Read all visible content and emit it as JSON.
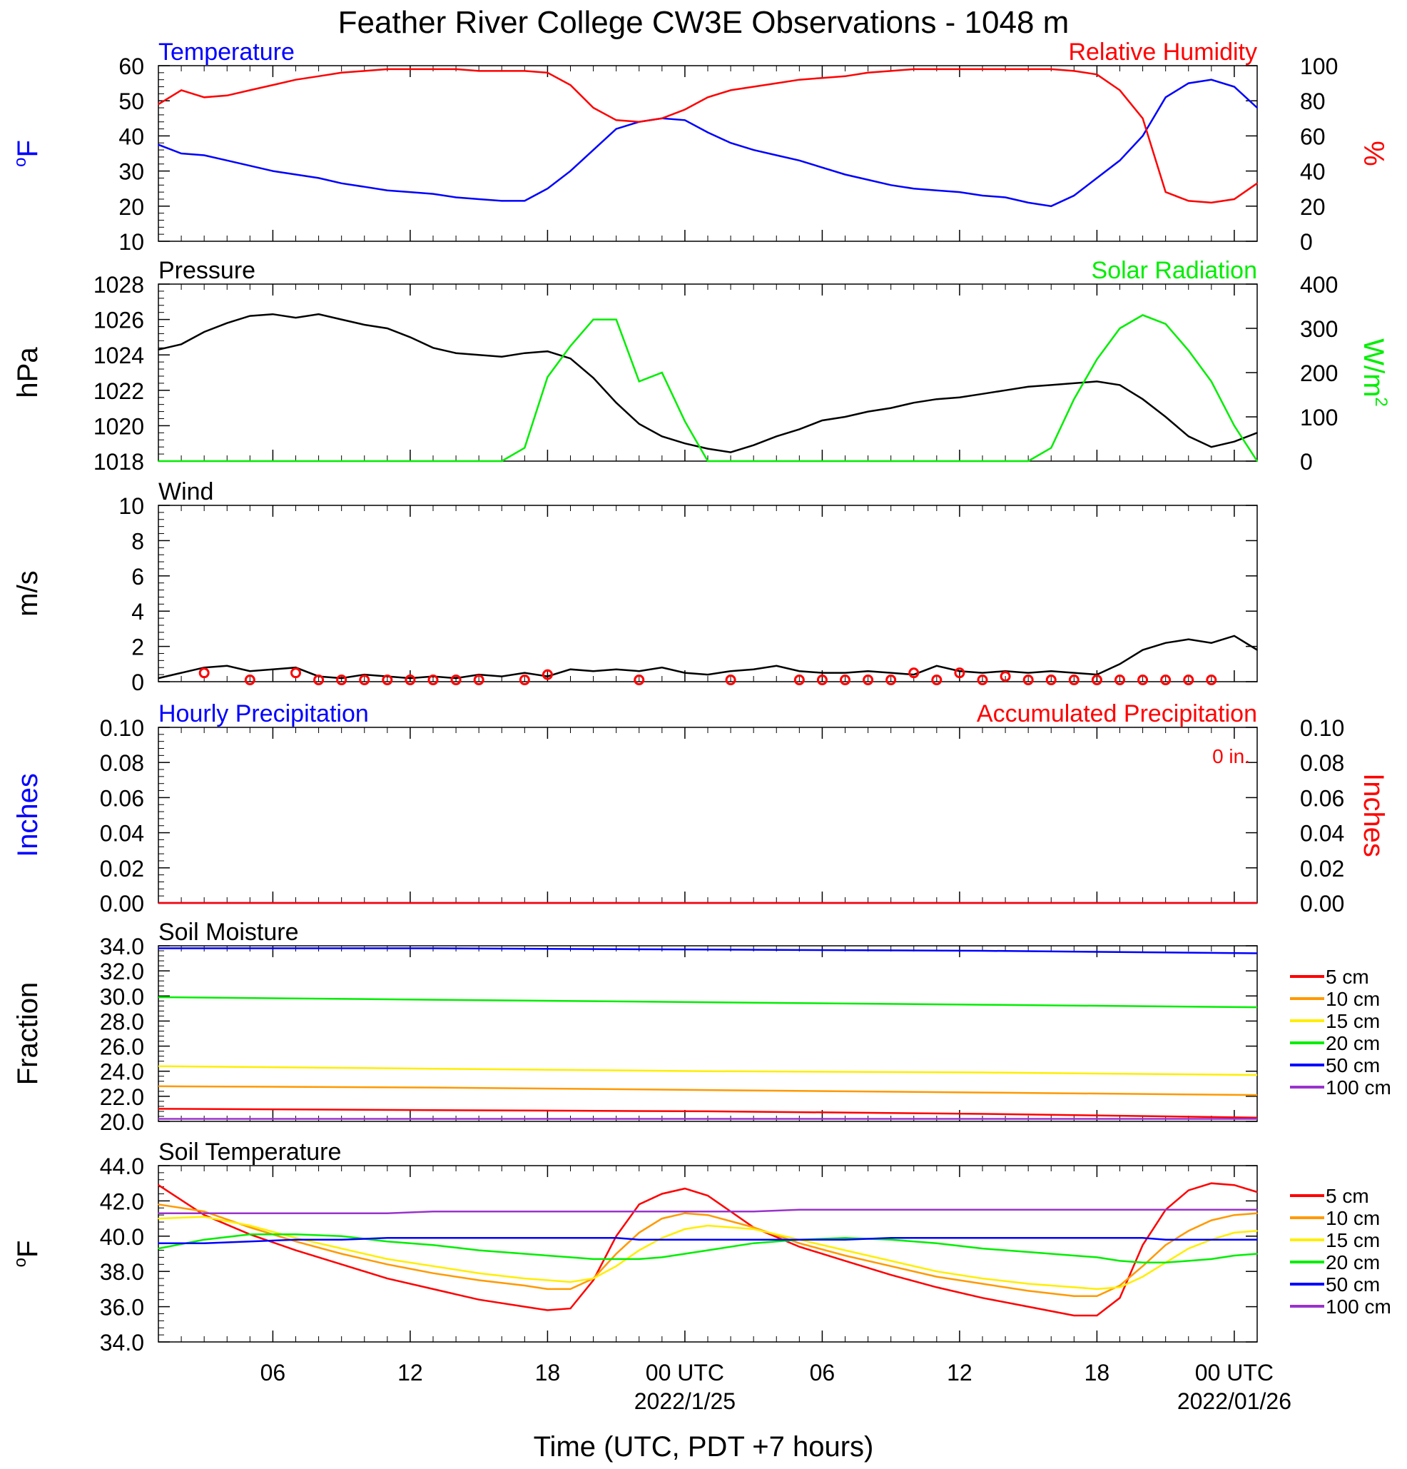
{
  "title": "Feather River College CW3E Observations - 1048 m",
  "colors": {
    "blue": "#0000ff",
    "red": "#ff0000",
    "green": "#00ee00",
    "black": "#000000",
    "orange": "#ff9900",
    "yellow": "#ffee00",
    "purple": "#9933cc"
  },
  "x_axis": {
    "title": "Time (UTC, PDT +7 hours)",
    "hours_range": [
      0,
      48
    ],
    "ticks": [
      {
        "hour": 5,
        "label": "06"
      },
      {
        "hour": 11,
        "label": "12"
      },
      {
        "hour": 17,
        "label": "18"
      },
      {
        "hour": 23,
        "label": "00 UTC",
        "sublabel": "2022/1/25"
      },
      {
        "hour": 29,
        "label": "06"
      },
      {
        "hour": 35,
        "label": "12"
      },
      {
        "hour": 41,
        "label": "18"
      },
      {
        "hour": 47,
        "label": "00 UTC",
        "sublabel": "2022/01/26"
      }
    ]
  },
  "chart_data": [
    {
      "type": "line",
      "panel": "temperature-rh",
      "title_left": "Temperature",
      "title_right": "Relative Humidity",
      "ylabel_left": "oF",
      "ylabel_right": "%",
      "ylim_left": [
        10,
        60
      ],
      "ylim_right": [
        0,
        100
      ],
      "yticks_left": [
        "10",
        "20",
        "30",
        "40",
        "50",
        "60"
      ],
      "yticks_right": [
        "0",
        "20",
        "40",
        "60",
        "80",
        "100"
      ],
      "x_hours": [
        0,
        1,
        2,
        3,
        4,
        5,
        6,
        7,
        8,
        9,
        10,
        11,
        12,
        13,
        14,
        15,
        16,
        17,
        18,
        19,
        20,
        21,
        22,
        23,
        24,
        25,
        26,
        27,
        28,
        29,
        30,
        31,
        32,
        33,
        34,
        35,
        36,
        37,
        38,
        39,
        40,
        41,
        42,
        43,
        44,
        45,
        46,
        47,
        48
      ],
      "series": [
        {
          "name": "Temperature",
          "axis": "left",
          "color": "blue",
          "values": [
            37.5,
            35,
            34.5,
            33,
            31.5,
            30,
            29,
            28,
            26.5,
            25.5,
            24.5,
            24,
            23.5,
            22.5,
            22,
            21.5,
            21.5,
            25,
            30,
            36,
            42,
            44,
            45,
            44.5,
            41,
            38,
            36,
            34.5,
            33,
            31,
            29,
            27.5,
            26,
            25,
            24.5,
            24,
            23,
            22.5,
            21,
            20,
            23,
            28,
            33,
            40,
            51,
            55,
            56,
            54,
            48
          ]
        },
        {
          "name": "Relative Humidity",
          "axis": "right",
          "color": "red",
          "values": [
            78,
            86,
            82,
            83,
            86,
            89,
            92,
            94,
            96,
            97,
            98,
            98,
            98,
            98,
            97,
            97,
            97,
            96,
            89,
            76,
            69,
            68,
            70,
            75,
            82,
            86,
            88,
            90,
            92,
            93,
            94,
            96,
            97,
            98,
            98,
            98,
            98,
            98,
            98,
            98,
            97,
            95,
            86,
            70,
            28,
            23,
            22,
            24,
            33
          ]
        }
      ]
    },
    {
      "type": "line",
      "panel": "pressure-solar",
      "title_left": "Pressure",
      "title_right": "Solar Radiation",
      "ylabel_left": "hPa",
      "ylabel_right": "W/m2",
      "ylim_left": [
        1018,
        1028
      ],
      "ylim_right": [
        0,
        400
      ],
      "yticks_left": [
        "1018",
        "1020",
        "1022",
        "1024",
        "1026",
        "1028"
      ],
      "yticks_right": [
        "0",
        "100",
        "200",
        "300",
        "400"
      ],
      "x_hours": [
        0,
        1,
        2,
        3,
        4,
        5,
        6,
        7,
        8,
        9,
        10,
        11,
        12,
        13,
        14,
        15,
        16,
        17,
        18,
        19,
        20,
        21,
        22,
        23,
        24,
        25,
        26,
        27,
        28,
        29,
        30,
        31,
        32,
        33,
        34,
        35,
        36,
        37,
        38,
        39,
        40,
        41,
        42,
        43,
        44,
        45,
        46,
        47,
        48
      ],
      "series": [
        {
          "name": "Pressure",
          "axis": "left",
          "color": "black",
          "values": [
            1024.3,
            1024.6,
            1025.3,
            1025.8,
            1026.2,
            1026.3,
            1026.1,
            1026.3,
            1026,
            1025.7,
            1025.5,
            1025,
            1024.4,
            1024.1,
            1024,
            1023.9,
            1024.1,
            1024.2,
            1023.8,
            1022.7,
            1021.3,
            1020.1,
            1019.4,
            1019,
            1018.7,
            1018.5,
            1018.9,
            1019.4,
            1019.8,
            1020.3,
            1020.5,
            1020.8,
            1021,
            1021.3,
            1021.5,
            1021.6,
            1021.8,
            1022,
            1022.2,
            1022.3,
            1022.4,
            1022.5,
            1022.3,
            1021.5,
            1020.5,
            1019.4,
            1018.8,
            1019.1,
            1019.6
          ]
        },
        {
          "name": "Solar Radiation",
          "axis": "right",
          "color": "green",
          "values": [
            0,
            0,
            0,
            0,
            0,
            0,
            0,
            0,
            0,
            0,
            0,
            0,
            0,
            0,
            0,
            0,
            30,
            190,
            260,
            320,
            320,
            180,
            200,
            90,
            0,
            0,
            0,
            0,
            0,
            0,
            0,
            0,
            0,
            0,
            0,
            0,
            0,
            0,
            0,
            30,
            140,
            230,
            300,
            330,
            310,
            250,
            180,
            80,
            0
          ]
        }
      ]
    },
    {
      "type": "line",
      "panel": "wind",
      "title_left": "Wind",
      "ylabel_left": "m/s",
      "ylim_left": [
        0,
        10
      ],
      "yticks_left": [
        "0",
        "2",
        "4",
        "6",
        "8",
        "10"
      ],
      "x_hours": [
        0,
        1,
        2,
        3,
        4,
        5,
        6,
        7,
        8,
        9,
        10,
        11,
        12,
        13,
        14,
        15,
        16,
        17,
        18,
        19,
        20,
        21,
        22,
        23,
        24,
        25,
        26,
        27,
        28,
        29,
        30,
        31,
        32,
        33,
        34,
        35,
        36,
        37,
        38,
        39,
        40,
        41,
        42,
        43,
        44,
        45,
        46,
        47,
        48
      ],
      "series": [
        {
          "name": "Wind Speed",
          "axis": "left",
          "color": "black",
          "values": [
            0.2,
            0.5,
            0.8,
            0.9,
            0.6,
            0.7,
            0.8,
            0.3,
            0.2,
            0.4,
            0.3,
            0.2,
            0.3,
            0.2,
            0.4,
            0.3,
            0.5,
            0.3,
            0.7,
            0.6,
            0.7,
            0.6,
            0.8,
            0.5,
            0.4,
            0.6,
            0.7,
            0.9,
            0.6,
            0.5,
            0.5,
            0.6,
            0.5,
            0.4,
            0.9,
            0.6,
            0.5,
            0.6,
            0.5,
            0.6,
            0.5,
            0.4,
            1,
            1.8,
            2.2,
            2.4,
            2.2,
            2.6,
            1.8
          ]
        }
      ],
      "barb_hours": [
        2,
        4,
        6,
        7,
        8,
        9,
        10,
        11,
        12,
        13,
        14,
        16,
        17,
        21,
        25,
        28,
        29,
        30,
        31,
        32,
        33,
        34,
        35,
        36,
        37,
        38,
        39,
        40,
        41,
        42,
        43,
        44,
        45,
        46
      ],
      "barb_speeds": [
        0.5,
        0.1,
        0.5,
        0.1,
        0.1,
        0.1,
        0.1,
        0.1,
        0.1,
        0.1,
        0.1,
        0.1,
        0.4,
        0.1,
        0.1,
        0.1,
        0.1,
        0.1,
        0.1,
        0.1,
        0.5,
        0.1,
        0.5,
        0.1,
        0.3,
        0.1,
        0.1,
        0.1,
        0.1,
        0.1,
        0.1,
        0.1,
        0.1,
        0.1
      ]
    },
    {
      "type": "line",
      "panel": "precipitation",
      "title_left": "Hourly Precipitation",
      "title_right": "Accumulated Precipitation",
      "annotation": "0 in.",
      "ylabel_left": "Inches",
      "ylabel_right": "Inches",
      "ylim_left": [
        0,
        0.1
      ],
      "ylim_right": [
        0,
        0.1
      ],
      "yticks_left": [
        "0.00",
        "0.02",
        "0.04",
        "0.06",
        "0.08",
        "0.10"
      ],
      "yticks_right": [
        "0.00",
        "0.02",
        "0.04",
        "0.06",
        "0.08",
        "0.10"
      ],
      "x_hours": [
        0,
        48
      ],
      "series": [
        {
          "name": "Hourly Precipitation",
          "axis": "left",
          "color": "blue",
          "values": [
            0,
            0
          ]
        },
        {
          "name": "Accumulated Precipitation",
          "axis": "right",
          "color": "red",
          "values": [
            0,
            0
          ]
        }
      ]
    },
    {
      "type": "line",
      "panel": "soil-moisture",
      "title_left": "Soil Moisture",
      "ylabel_left": "Fraction",
      "ylim_left": [
        20,
        34
      ],
      "yticks_left": [
        "20.0",
        "22.0",
        "24.0",
        "26.0",
        "28.0",
        "30.0",
        "32.0",
        "34.0"
      ],
      "x_hours": [
        0,
        12,
        24,
        36,
        48
      ],
      "series": [
        {
          "name": "5 cm",
          "color": "red",
          "values": [
            21.0,
            20.9,
            20.8,
            20.6,
            20.3
          ]
        },
        {
          "name": "10 cm",
          "color": "orange",
          "values": [
            22.8,
            22.7,
            22.5,
            22.3,
            22.1
          ]
        },
        {
          "name": "15 cm",
          "color": "yellow",
          "values": [
            24.4,
            24.2,
            24.0,
            23.9,
            23.7
          ]
        },
        {
          "name": "20 cm",
          "color": "green",
          "values": [
            29.9,
            29.7,
            29.5,
            29.3,
            29.1
          ]
        },
        {
          "name": "50 cm",
          "color": "blue",
          "values": [
            33.8,
            33.8,
            33.7,
            33.6,
            33.4
          ]
        },
        {
          "name": "100 cm",
          "color": "purple",
          "values": [
            20.2,
            20.2,
            20.2,
            20.2,
            20.2
          ]
        }
      ]
    },
    {
      "type": "line",
      "panel": "soil-temperature",
      "title_left": "Soil Temperature",
      "ylabel_left": "oF",
      "ylim_left": [
        34,
        44
      ],
      "yticks_left": [
        "34.0",
        "36.0",
        "38.0",
        "40.0",
        "42.0",
        "44.0"
      ],
      "x_hours": [
        0,
        2,
        4,
        6,
        8,
        10,
        12,
        14,
        16,
        17,
        18,
        19,
        20,
        21,
        22,
        23,
        24,
        26,
        28,
        30,
        32,
        34,
        36,
        38,
        40,
        41,
        42,
        43,
        44,
        45,
        46,
        47,
        48
      ],
      "series": [
        {
          "name": "5 cm",
          "color": "red",
          "values": [
            42.9,
            41.2,
            40.1,
            39.2,
            38.4,
            37.6,
            37,
            36.4,
            36,
            35.8,
            35.9,
            37.5,
            40,
            41.8,
            42.4,
            42.7,
            42.3,
            40.5,
            39.4,
            38.6,
            37.8,
            37.1,
            36.5,
            36,
            35.5,
            35.5,
            36.5,
            39.5,
            41.5,
            42.6,
            43,
            42.9,
            42.5
          ]
        },
        {
          "name": "10 cm",
          "color": "orange",
          "values": [
            41.8,
            41.4,
            40.5,
            39.7,
            39,
            38.4,
            37.9,
            37.5,
            37.2,
            37,
            37,
            37.6,
            39,
            40.2,
            41,
            41.3,
            41.2,
            40.5,
            39.6,
            38.9,
            38.3,
            37.7,
            37.3,
            36.9,
            36.6,
            36.6,
            37.2,
            38.3,
            39.5,
            40.3,
            40.9,
            41.2,
            41.3
          ]
        },
        {
          "name": "15 cm",
          "color": "yellow",
          "values": [
            41.0,
            41.1,
            40.6,
            39.9,
            39.3,
            38.7,
            38.3,
            37.9,
            37.6,
            37.5,
            37.4,
            37.6,
            38.3,
            39.2,
            39.9,
            40.4,
            40.6,
            40.4,
            39.8,
            39.2,
            38.6,
            38,
            37.6,
            37.3,
            37.1,
            37,
            37.1,
            37.7,
            38.5,
            39.3,
            39.8,
            40.2,
            40.3
          ]
        },
        {
          "name": "20 cm",
          "color": "green",
          "values": [
            39.3,
            39.8,
            40.1,
            40.1,
            40,
            39.7,
            39.5,
            39.2,
            39,
            38.9,
            38.8,
            38.7,
            38.7,
            38.7,
            38.8,
            39,
            39.2,
            39.6,
            39.8,
            39.9,
            39.8,
            39.6,
            39.3,
            39.1,
            38.9,
            38.8,
            38.6,
            38.5,
            38.5,
            38.6,
            38.7,
            38.9,
            39.0
          ]
        },
        {
          "name": "50 cm",
          "color": "blue",
          "values": [
            39.6,
            39.6,
            39.7,
            39.8,
            39.8,
            39.9,
            39.9,
            39.9,
            39.9,
            39.9,
            39.9,
            39.9,
            39.9,
            39.8,
            39.8,
            39.8,
            39.8,
            39.8,
            39.8,
            39.8,
            39.9,
            39.9,
            39.9,
            39.9,
            39.9,
            39.9,
            39.9,
            39.9,
            39.8,
            39.8,
            39.8,
            39.8,
            39.8
          ]
        },
        {
          "name": "100 cm",
          "color": "purple",
          "values": [
            41.3,
            41.3,
            41.3,
            41.3,
            41.3,
            41.3,
            41.4,
            41.4,
            41.4,
            41.4,
            41.4,
            41.4,
            41.4,
            41.4,
            41.4,
            41.4,
            41.4,
            41.4,
            41.5,
            41.5,
            41.5,
            41.5,
            41.5,
            41.5,
            41.5,
            41.5,
            41.5,
            41.5,
            41.5,
            41.5,
            41.5,
            41.5,
            41.5
          ]
        }
      ]
    }
  ]
}
